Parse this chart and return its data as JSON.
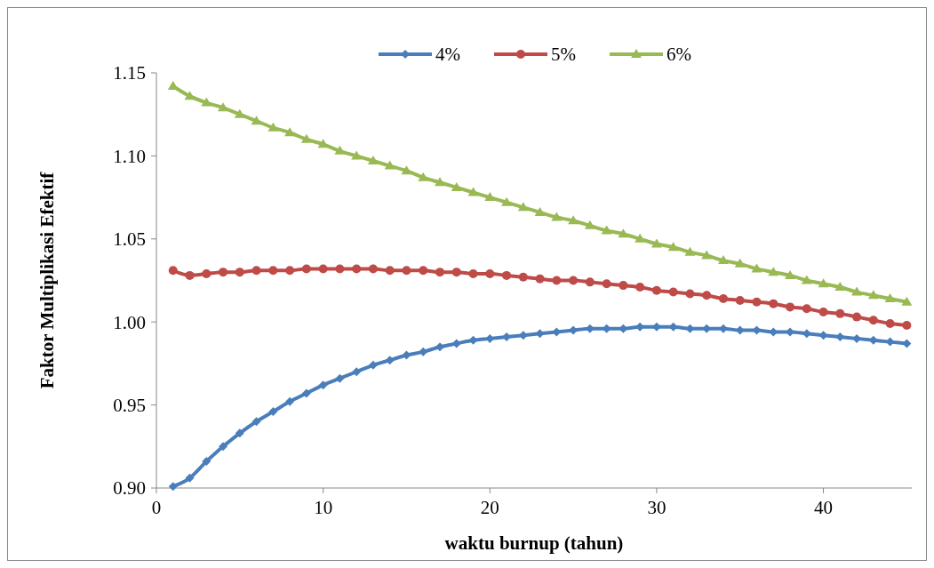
{
  "chart_data": {
    "type": "line",
    "xlabel": "waktu burnup (tahun)",
    "ylabel": "Faktor Multiplikasi Efektif",
    "x": [
      1,
      2,
      3,
      4,
      5,
      6,
      7,
      8,
      9,
      10,
      11,
      12,
      13,
      14,
      15,
      16,
      17,
      18,
      19,
      20,
      21,
      22,
      23,
      24,
      25,
      26,
      27,
      28,
      29,
      30,
      31,
      32,
      33,
      34,
      35,
      36,
      37,
      38,
      39,
      40,
      41,
      42,
      43,
      44,
      45
    ],
    "series": [
      {
        "name": "4%",
        "color": "#4a7ebb",
        "marker": "diamond",
        "values": [
          0.901,
          0.906,
          0.916,
          0.925,
          0.933,
          0.94,
          0.946,
          0.952,
          0.957,
          0.962,
          0.966,
          0.97,
          0.974,
          0.977,
          0.98,
          0.982,
          0.985,
          0.987,
          0.989,
          0.99,
          0.991,
          0.992,
          0.993,
          0.994,
          0.995,
          0.996,
          0.996,
          0.996,
          0.997,
          0.997,
          0.997,
          0.996,
          0.996,
          0.996,
          0.995,
          0.995,
          0.994,
          0.994,
          0.993,
          0.992,
          0.991,
          0.99,
          0.989,
          0.988,
          0.987
        ]
      },
      {
        "name": "5%",
        "color": "#be4b48",
        "marker": "circle",
        "values": [
          1.031,
          1.028,
          1.029,
          1.03,
          1.03,
          1.031,
          1.031,
          1.031,
          1.032,
          1.032,
          1.032,
          1.032,
          1.032,
          1.031,
          1.031,
          1.031,
          1.03,
          1.03,
          1.029,
          1.029,
          1.028,
          1.027,
          1.026,
          1.025,
          1.025,
          1.024,
          1.023,
          1.022,
          1.021,
          1.019,
          1.018,
          1.017,
          1.016,
          1.014,
          1.013,
          1.012,
          1.011,
          1.009,
          1.008,
          1.006,
          1.005,
          1.003,
          1.001,
          0.999,
          0.998
        ]
      },
      {
        "name": "6%",
        "color": "#98b954",
        "marker": "triangle",
        "values": [
          1.142,
          1.136,
          1.132,
          1.129,
          1.125,
          1.121,
          1.117,
          1.114,
          1.11,
          1.107,
          1.103,
          1.1,
          1.097,
          1.094,
          1.091,
          1.087,
          1.084,
          1.081,
          1.078,
          1.075,
          1.072,
          1.069,
          1.066,
          1.063,
          1.061,
          1.058,
          1.055,
          1.053,
          1.05,
          1.047,
          1.045,
          1.042,
          1.04,
          1.037,
          1.035,
          1.032,
          1.03,
          1.028,
          1.025,
          1.023,
          1.021,
          1.018,
          1.016,
          1.014,
          1.012
        ]
      }
    ],
    "xlim": [
      0,
      45.3
    ],
    "xticks": [
      0,
      10,
      20,
      30,
      40
    ],
    "ylim": [
      0.9,
      1.15
    ],
    "yticks": [
      {
        "value": 0.9,
        "label": "0.90"
      },
      {
        "value": 0.95,
        "label": "0.95"
      },
      {
        "value": 1.0,
        "label": "1.00"
      },
      {
        "value": 1.05,
        "label": "1.05"
      },
      {
        "value": 1.1,
        "label": "1.10"
      },
      {
        "value": 1.15,
        "label": "1.15"
      }
    ],
    "legend": "top",
    "line_style": "solid"
  }
}
